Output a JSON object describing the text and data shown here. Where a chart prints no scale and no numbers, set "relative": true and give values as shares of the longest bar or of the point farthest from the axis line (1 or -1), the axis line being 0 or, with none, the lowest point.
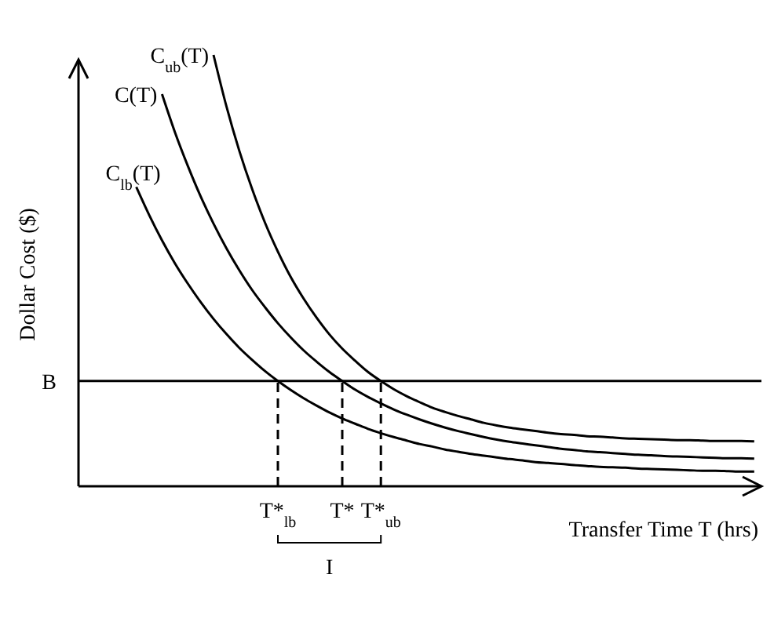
{
  "chart_data": {
    "type": "line",
    "relative": true,
    "xlabel": "Transfer Time T (hrs)",
    "ylabel": "Dollar Cost ($)",
    "marker": "none",
    "line_style": "solid",
    "categories": [
      null,
      null,
      null,
      null,
      null,
      null,
      null,
      null,
      null,
      null,
      null,
      "T*$_{lb}$",
      null,
      null,
      null,
      null,
      "T*",
      null,
      null,
      "T*$_{ub}$",
      null,
      null,
      null,
      null,
      null,
      null,
      null,
      null,
      null,
      null,
      null,
      null,
      null,
      null,
      null,
      null,
      null,
      null,
      null,
      null,
      null,
      null,
      null,
      null,
      null,
      null,
      null,
      null,
      null
    ],
    "series": [
      {
        "name": "C$_{ub}$(T)",
        "color": "#000000",
        "values": [
          null,
          null,
          null,
          null,
          null,
          null,
          1.0,
          0.881,
          0.778,
          0.689,
          0.611,
          0.544,
          0.485,
          0.435,
          0.391,
          0.352,
          0.319,
          0.291,
          0.265,
          0.244,
          0.225,
          0.209,
          0.195,
          0.182,
          0.172,
          0.163,
          0.155,
          0.147,
          0.141,
          0.136,
          0.132,
          0.128,
          0.124,
          0.121,
          0.119,
          0.116,
          0.115,
          0.113,
          0.111,
          0.11,
          0.109,
          0.108,
          0.107,
          0.107,
          0.106,
          0.105,
          0.105,
          0.105,
          0.104
        ]
      },
      {
        "name": "C(T)",
        "color": "#000000",
        "values": [
          null,
          null,
          0.909,
          0.821,
          0.743,
          0.672,
          0.609,
          0.552,
          0.501,
          0.455,
          0.415,
          0.378,
          0.345,
          0.315,
          0.289,
          0.265,
          0.244,
          0.224,
          0.207,
          0.192,
          0.178,
          0.166,
          0.155,
          0.145,
          0.136,
          0.128,
          0.121,
          0.114,
          0.108,
          0.103,
          0.099,
          0.095,
          0.091,
          0.087,
          0.084,
          0.081,
          0.079,
          0.077,
          0.075,
          0.073,
          0.072,
          0.07,
          0.069,
          0.068,
          0.067,
          0.066,
          0.065,
          0.065,
          0.064
        ]
      },
      {
        "name": "C$_{lb}$(T)",
        "color": "#000000",
        "values": [
          0.694,
          0.629,
          0.57,
          0.517,
          0.47,
          0.427,
          0.388,
          0.353,
          0.321,
          0.293,
          0.267,
          0.244,
          0.223,
          0.204,
          0.187,
          0.171,
          0.157,
          0.145,
          0.133,
          0.123,
          0.114,
          0.106,
          0.098,
          0.092,
          0.085,
          0.08,
          0.075,
          0.071,
          0.067,
          0.063,
          0.06,
          0.056,
          0.054,
          0.052,
          0.049,
          0.047,
          0.045,
          0.044,
          0.043,
          0.041,
          0.04,
          0.039,
          0.038,
          0.037,
          0.036,
          0.036,
          0.035,
          0.034,
          0.034
        ]
      }
    ],
    "ref_lines": [
      {
        "axis": "y",
        "value": 0.244,
        "label": "B",
        "color": "#000000",
        "line_style": "solid"
      },
      {
        "axis": "x",
        "value": "T*$_{lb}$",
        "color": "#000000",
        "line_style": "dashed"
      },
      {
        "axis": "x",
        "value": "T*",
        "color": "#000000",
        "line_style": "dashed"
      },
      {
        "axis": "x",
        "value": "T*$_{ub}$",
        "color": "#000000",
        "line_style": "dashed"
      }
    ],
    "annotations": [
      "I"
    ]
  }
}
